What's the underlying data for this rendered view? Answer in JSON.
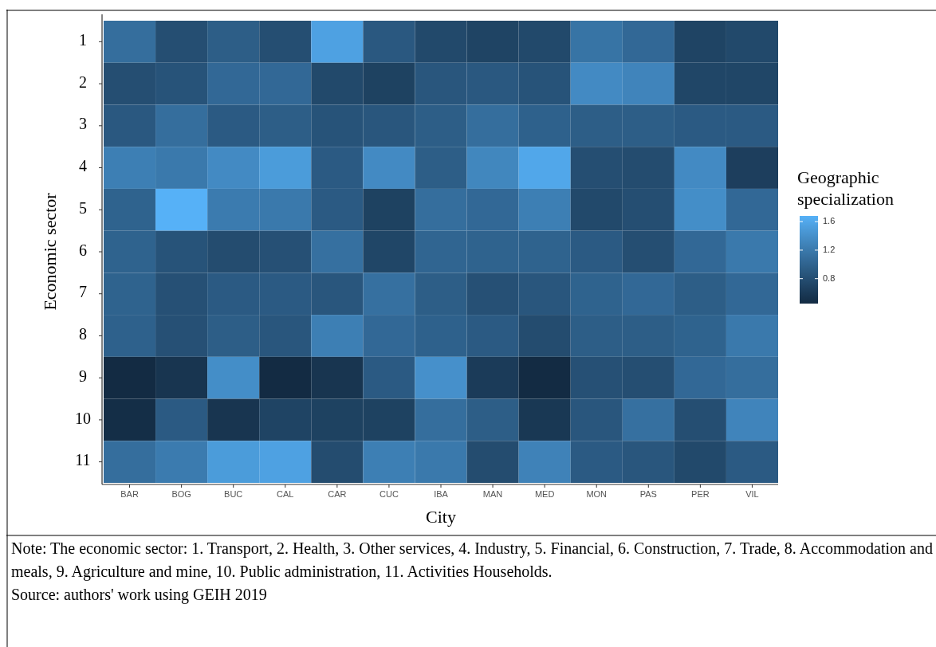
{
  "chart_data": {
    "type": "heatmap",
    "xlabel": "City",
    "ylabel": "Economic sector",
    "legend_title": "Geographic specialization",
    "categories": [
      "BAR",
      "BOG",
      "BUC",
      "CAL",
      "CAR",
      "CUC",
      "IBA",
      "MAN",
      "MED",
      "MON",
      "PAS",
      "PER",
      "VIL"
    ],
    "y_categories": [
      "1",
      "2",
      "3",
      "4",
      "5",
      "6",
      "7",
      "8",
      "9",
      "10",
      "11"
    ],
    "cells": [
      [
        1.1,
        0.8,
        0.95,
        0.8,
        1.55,
        0.9,
        0.75,
        0.7,
        0.75,
        1.15,
        1.05,
        0.7,
        0.75
      ],
      [
        0.8,
        0.85,
        1.05,
        1.05,
        0.75,
        0.68,
        0.88,
        0.9,
        0.85,
        1.35,
        1.3,
        0.72,
        0.72
      ],
      [
        0.9,
        1.1,
        0.92,
        0.95,
        0.85,
        0.88,
        0.95,
        1.1,
        0.98,
        0.95,
        0.95,
        0.92,
        0.92
      ],
      [
        1.25,
        1.2,
        1.35,
        1.5,
        0.92,
        1.35,
        0.95,
        1.32,
        1.6,
        0.8,
        0.78,
        1.35,
        0.65
      ],
      [
        1.0,
        1.68,
        1.22,
        1.2,
        0.92,
        0.68,
        1.1,
        1.05,
        1.25,
        0.75,
        0.8,
        1.38,
        1.05
      ],
      [
        1.0,
        0.85,
        0.78,
        0.82,
        1.12,
        0.72,
        1.02,
        1.0,
        1.0,
        0.92,
        0.8,
        1.05,
        1.2
      ],
      [
        1.0,
        0.82,
        0.92,
        0.92,
        0.88,
        1.12,
        0.95,
        0.82,
        0.88,
        1.0,
        1.05,
        0.95,
        1.05
      ],
      [
        0.98,
        0.82,
        0.95,
        0.88,
        1.25,
        1.05,
        0.98,
        0.92,
        0.78,
        0.95,
        0.95,
        1.0,
        1.2
      ],
      [
        0.45,
        0.55,
        1.38,
        0.45,
        0.55,
        0.92,
        1.4,
        0.62,
        0.45,
        0.82,
        0.8,
        1.05,
        1.1
      ],
      [
        0.48,
        0.92,
        0.55,
        0.7,
        0.68,
        0.68,
        1.1,
        0.95,
        0.58,
        0.88,
        1.12,
        0.8,
        1.3
      ],
      [
        1.1,
        1.22,
        1.5,
        1.55,
        0.78,
        1.25,
        1.2,
        0.78,
        1.28,
        0.92,
        0.88,
        0.75,
        0.92
      ]
    ],
    "clim": [
      0.45,
      1.68
    ],
    "cticks": [
      0.8,
      1.2,
      1.6
    ],
    "annotations": [
      "Note: The economic sector:  1. Transport, 2. Health, 3. Other services, 4. Industry, 5. Financial, 6. Construction, 7. Trade, 8. Accommodation and meals, 9. Agriculture and mine, 10. Public administration, 11. Activities Households.",
      "Source: authors' work using GEIH 2019"
    ]
  }
}
